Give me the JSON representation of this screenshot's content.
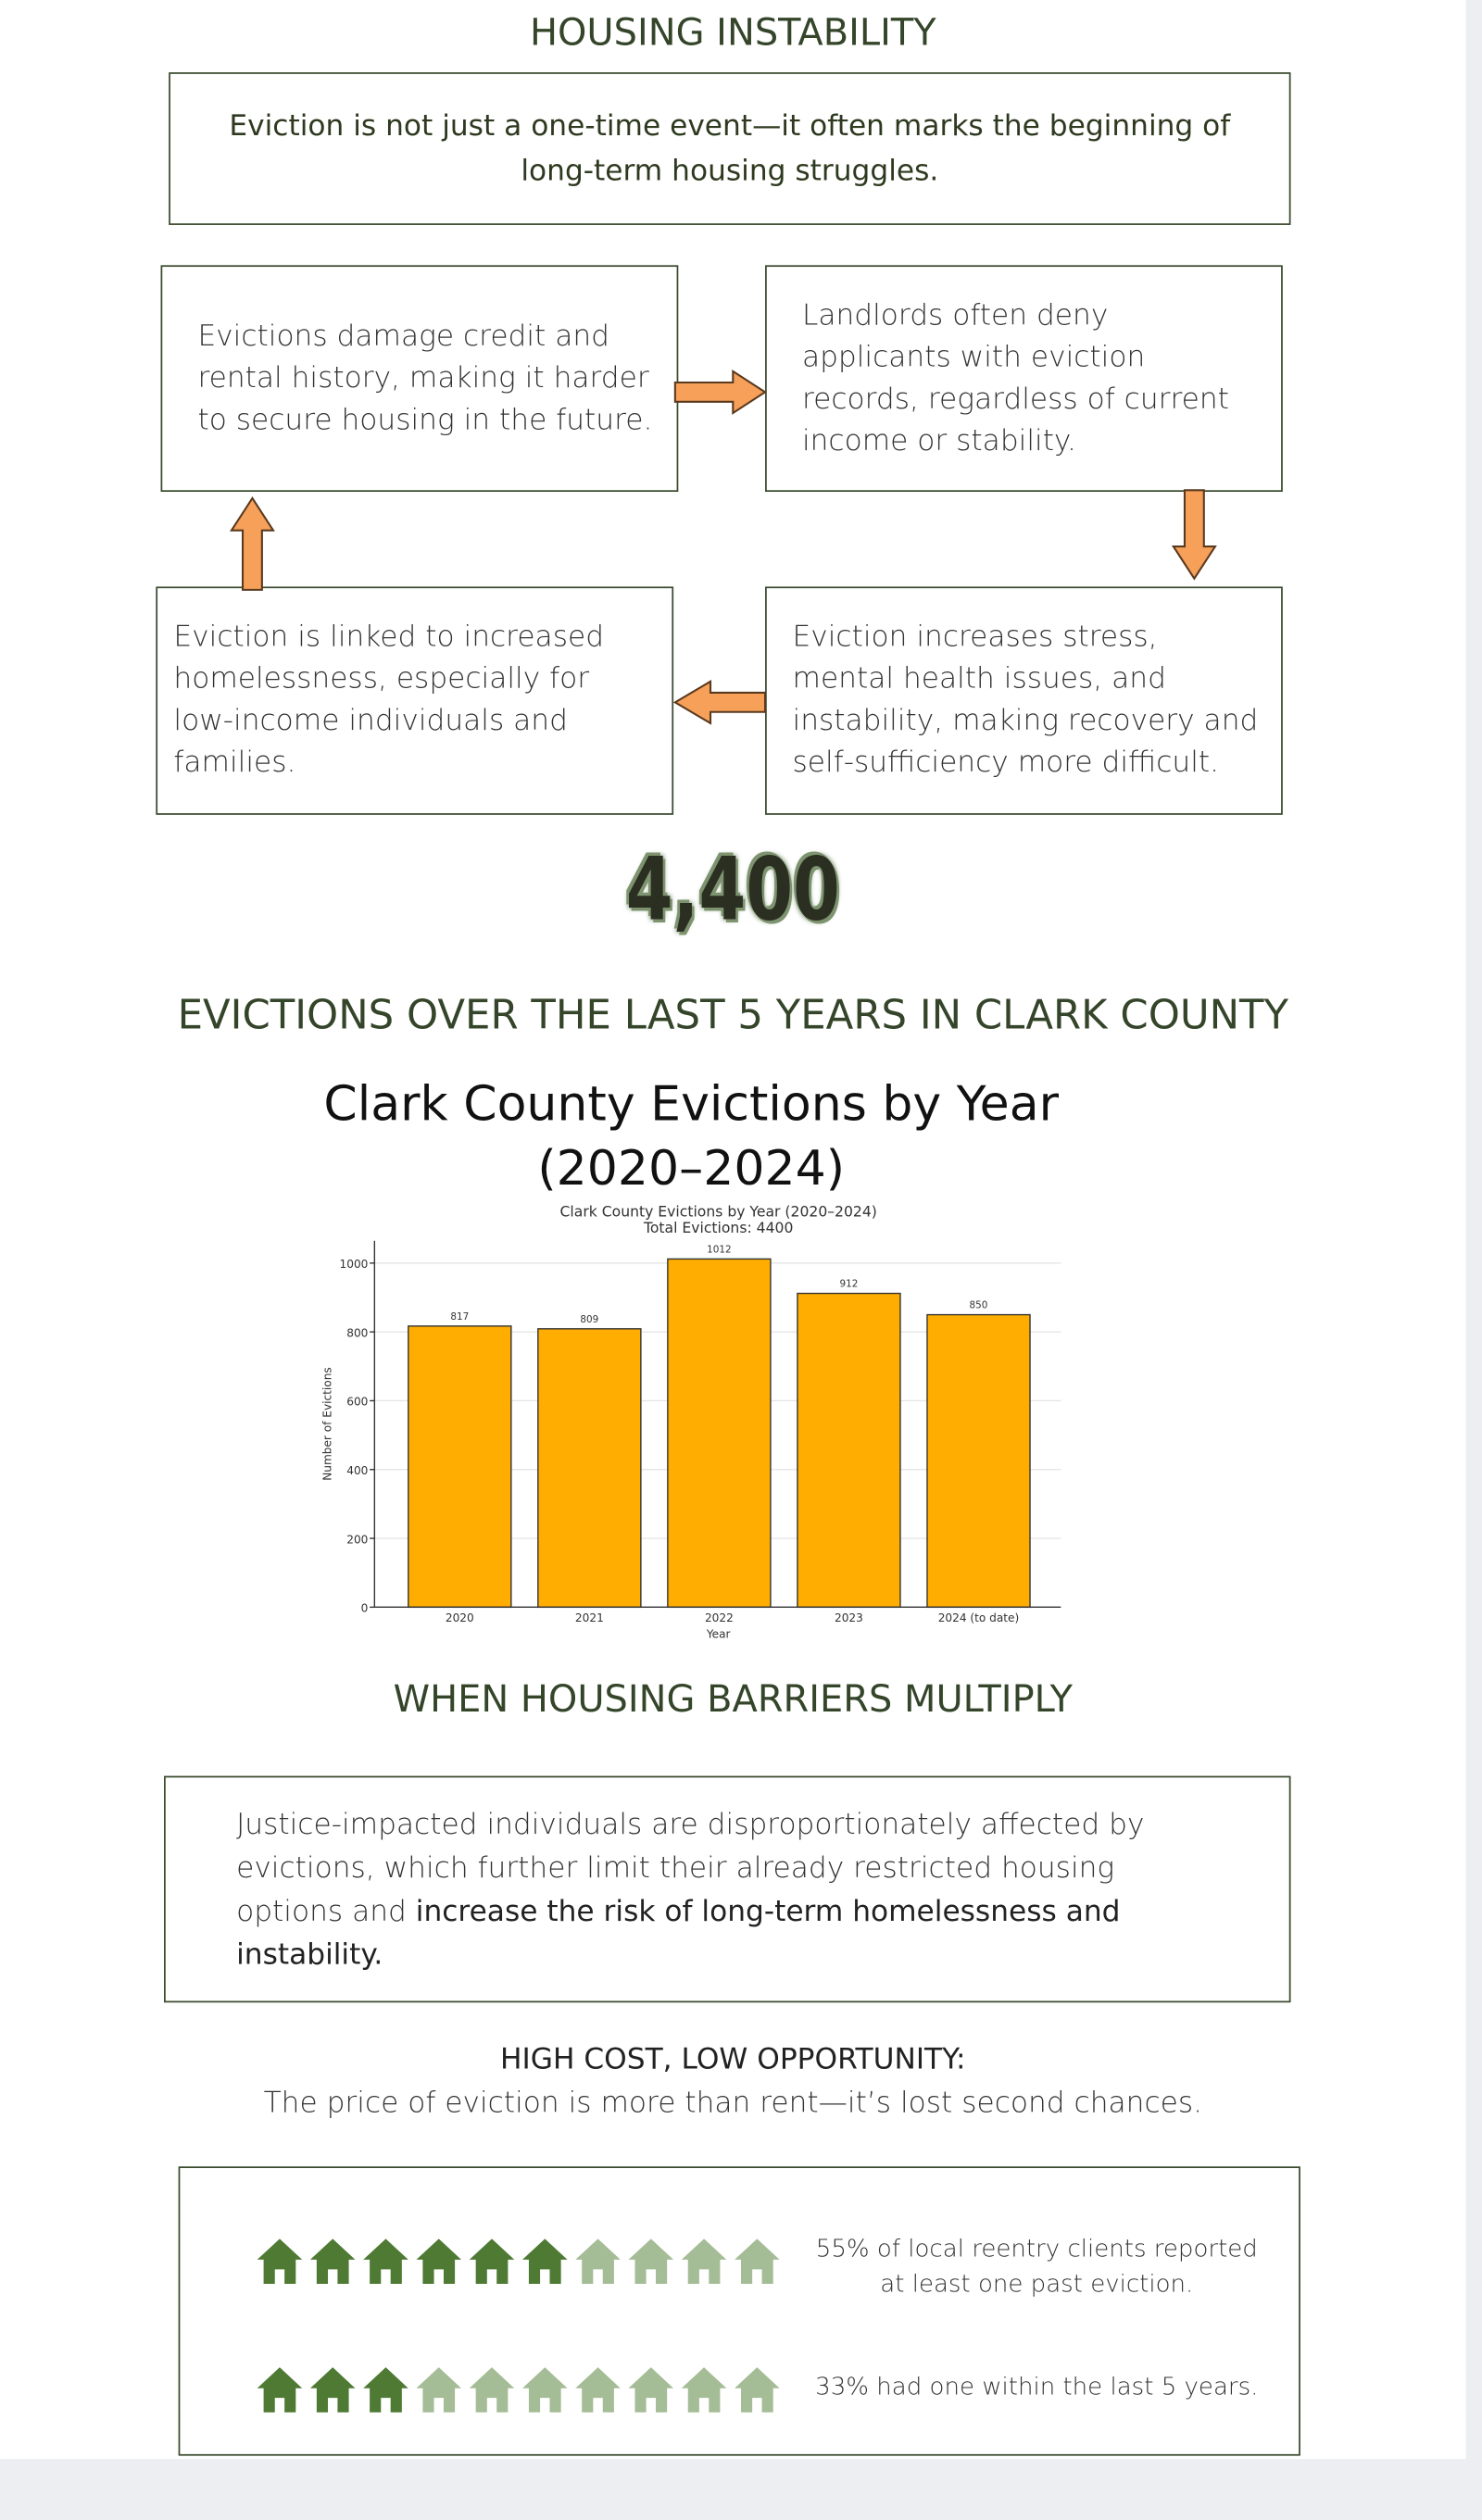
{
  "header": {
    "title": "HOUSING INSTABILITY",
    "intro": "Eviction is not just a one-time event—it often marks the beginning of long-term housing struggles."
  },
  "cycle": {
    "boxes": [
      "Evictions damage credit and rental history, making it harder to secure housing in the future.",
      "Landlords often deny applicants with eviction records, regardless of current income or stability.",
      "Eviction increases stress, mental health issues, and instability, making recovery and self-sufficiency more difficult.",
      "Eviction is linked to increased homelessness, especially for low-income individuals and families."
    ]
  },
  "stat": {
    "number": "4,400",
    "caption": "EVICTIONS OVER THE LAST 5 YEARS IN CLARK COUNTY"
  },
  "chart_heading": "Clark County Evictions by Year (2020–2024)",
  "chart_data": {
    "type": "bar",
    "title": "Clark County Evictions by Year (2020–2024)",
    "subtitle": "Total Evictions: 4400",
    "xlabel": "Year",
    "ylabel": "Number of Evictions",
    "categories": [
      "2020",
      "2021",
      "2022",
      "2023",
      "2024 (to date)"
    ],
    "values": [
      817,
      809,
      1012,
      912,
      850
    ],
    "color": "#ffad00",
    "ylim": [
      0,
      1065
    ],
    "yticks": [
      0,
      200,
      400,
      600,
      800,
      1000
    ],
    "grid": true
  },
  "barriers": {
    "title": "WHEN HOUSING BARRIERS MULTIPLY",
    "text": "Justice-impacted individuals are disproportionately affected by evictions, which further limit their already restricted housing options and ",
    "text_bold": "increase the risk of long-term homelessness and instability."
  },
  "cost": {
    "title": "HIGH COST, LOW OPPORTUNITY:",
    "subtitle": "The price of eviction is more than rent—it’s lost second chances."
  },
  "stats": [
    "55% of local reentry clients reported at least one past eviction.",
    "33% had one within the last 5 years."
  ]
}
